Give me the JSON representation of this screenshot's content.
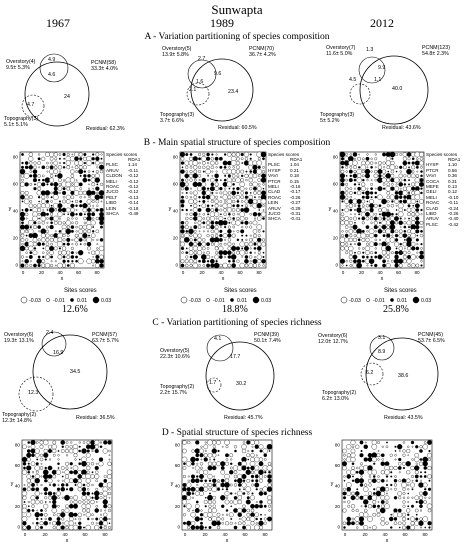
{
  "title": "Sunwapta",
  "years": [
    "1967",
    "1989",
    "2012"
  ],
  "sections": {
    "A": "A - Variation partitioning of species composition",
    "B": "B - Main spatial structure of species composition",
    "C": "C - Variation partitioning of species richness",
    "D": "D - Spatial structure of species richness"
  },
  "venn_A": [
    {
      "over_label": "Overstory(4)",
      "over_val": "9.5± 5.3%",
      "pcnm_label": "PCNM(58)",
      "pcnm_val": "33.3± 4.0%",
      "topo_label": "Topography(3)",
      "topo_val": "5.1± 5.1%",
      "v_over_pcnm": "4.9",
      "v_all": "4.6",
      "v_topo": "4.7",
      "v_pcnm": "24",
      "residual": "Residual: 62.3%"
    },
    {
      "over_label": "Overstory(5)",
      "over_val": "13.9± 5.8%",
      "pcnm_label": "PCNM(70)",
      "pcnm_val": "36.7± 4.2%",
      "topo_label": "Topography(3)",
      "topo_val": "3.7± 6.6%",
      "v_over": "2.7",
      "v_over_pcnm": "9.6",
      "v_all": "1.6",
      "v_topo": "2.1",
      "v_pcnm": "23.4",
      "residual": "Residual: 60.5%"
    },
    {
      "over_label": "Overstory(7)",
      "over_val": "11.6± 5.0%",
      "pcnm_label": "PCNM(123)",
      "pcnm_val": "54.8± 2.3%",
      "topo_label": "Topography(3)",
      "topo_val": "5± 5.2%",
      "v_over": "1.3",
      "v_over_pcnm": "9.9",
      "v_all": "4.5",
      "v_topo": "1.1",
      "v_pcnm": "40.0",
      "residual": "Residual: 43.6%"
    }
  ],
  "species_B": [
    {
      "header": "Species scores",
      "col": "RDA1",
      "names": [
        "PLSC",
        "",
        "ARUV",
        "CLDON",
        "MELI",
        "ROAC",
        "JUCO",
        "PELT",
        "LIBO",
        "LEIN",
        "SHCA"
      ],
      "scores": [
        "1.14",
        "",
        "-0.11",
        "-0.12",
        "-0.12",
        "-0.12",
        "-0.12",
        "-0.13",
        "-0.14",
        "-0.18",
        "-0.49"
      ],
      "pct": "12.6%"
    },
    {
      "header": "Species scores",
      "col": "RDA1",
      "names": [
        "PLSC",
        "HYSP",
        "VAVI",
        "PTCR",
        "",
        "MELI",
        "CLAD",
        "ROAC",
        "LEIN",
        "ARUV",
        "JUCO",
        "SHCA"
      ],
      "scores": [
        "1.04",
        "0.21",
        "0.18",
        "0.15",
        "",
        "-0.16",
        "-0.17",
        "-0.26",
        "-0.27",
        "-0.29",
        "-0.31",
        "-0.41"
      ],
      "pct": "18.8%"
    },
    {
      "header": "Species scores",
      "col": "RDA1",
      "names": [
        "HYSP",
        "PTCR",
        "VAVI",
        "COCA",
        "MEFE",
        "GELI",
        "",
        "MELI",
        "ROAC",
        "CLAD",
        "LIBO",
        "ARUV",
        "PLSC"
      ],
      "scores": [
        "1.10",
        "0.56",
        "0.36",
        "0.31",
        "0.13",
        "0.12",
        "",
        "-0.10",
        "-0.11",
        "-0.24",
        "-0.26",
        "-0.40",
        "-0.42"
      ],
      "pct": "25.8%"
    }
  ],
  "sites_legend": {
    "title": "Sites scores",
    "values": [
      "-0.03",
      "-0.01",
      "0.01",
      "0.03"
    ]
  },
  "venn_C": [
    {
      "over_label": "Overstory(6)",
      "over_val": "19.3± 13.1%",
      "pcnm_label": "PCNM(57)",
      "pcnm_val": "63.7± 5.7%",
      "topo_label": "Topography(2)",
      "topo_val": "12.3± 14.8%",
      "v_over": "2.4",
      "v_over_pcnm": "16.9",
      "v_pcnm": "34.5",
      "v_topo": "12.3",
      "residual": "Residual: 36.5%"
    },
    {
      "over_label": "Overstory(5)",
      "over_val": "22.3± 10.6%",
      "pcnm_label": "PCNM(39)",
      "pcnm_val": "50.1± 7.4%",
      "topo_label": "Topography(2)",
      "topo_val": "2.2± 15.7%",
      "v_over": "4.1",
      "v_over_pcnm": "17.7",
      "v_topo": "1.7",
      "v_pcnm": "30.2",
      "residual": "Residual: 45.7%"
    },
    {
      "over_label": "Overstory(6)",
      "over_val": "12.0± 12.7%",
      "pcnm_label": "PCNM(45)",
      "pcnm_val": "53.7± 6.5%",
      "topo_label": "Topography(2)",
      "topo_val": "6.2± 13.0%",
      "v_over": "3.1",
      "v_over_pcnm": "8.9",
      "v_topo": "6.2",
      "v_pcnm": "38.6",
      "residual": "Residual: 43.5%"
    }
  ],
  "axes": {
    "x": "x",
    "y": "y",
    "ticks": [
      "0",
      "20",
      "40",
      "60",
      "80"
    ]
  }
}
